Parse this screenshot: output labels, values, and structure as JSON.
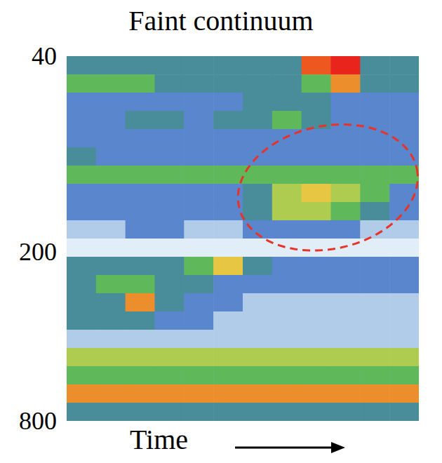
{
  "chart_data": {
    "type": "heatmap",
    "title": "Faint continuum",
    "xlabel": "Time",
    "log": "y",
    "tick_labels": "y",
    "ylim": [
      40,
      800
    ],
    "yticks": [
      40,
      200,
      800
    ],
    "y_edges": [
      40,
      46.5,
      54.0,
      62.7,
      72.8,
      84.6,
      98.3,
      114.1,
      132.6,
      154.0,
      178.9,
      207.8,
      241.4,
      280.4,
      325.7,
      378.3,
      439.5,
      510.5,
      593.0,
      688.8,
      800
    ],
    "cells": [
      [
        4,
        4,
        4,
        4,
        4,
        4,
        4,
        4,
        9,
        10,
        4,
        4
      ],
      [
        5,
        5,
        5,
        4,
        4,
        4,
        4,
        4,
        5,
        8,
        4,
        4
      ],
      [
        3,
        3,
        3,
        3,
        3,
        3,
        4,
        4,
        4,
        3,
        3,
        3
      ],
      [
        3,
        3,
        4,
        4,
        3,
        4,
        4,
        5,
        4,
        3,
        3,
        3
      ],
      [
        3,
        3,
        3,
        3,
        3,
        3,
        3,
        3,
        3,
        3,
        3,
        3
      ],
      [
        4,
        3,
        3,
        3,
        3,
        3,
        3,
        3,
        3,
        3,
        3,
        3
      ],
      [
        5,
        5,
        5,
        5,
        5,
        5,
        5,
        5,
        5,
        5,
        5,
        5
      ],
      [
        3,
        3,
        3,
        3,
        3,
        3,
        4,
        6,
        7,
        6,
        5,
        3
      ],
      [
        3,
        3,
        3,
        3,
        3,
        3,
        4,
        6,
        6,
        5,
        4,
        3
      ],
      [
        2,
        2,
        3,
        3,
        2,
        2,
        3,
        3,
        3,
        3,
        2,
        2
      ],
      [
        1,
        1,
        1,
        1,
        1,
        1,
        1,
        1,
        1,
        1,
        1,
        1
      ],
      [
        4,
        4,
        4,
        4,
        5,
        7,
        4,
        3,
        3,
        3,
        3,
        3
      ],
      [
        4,
        5,
        5,
        4,
        4,
        3,
        3,
        3,
        3,
        3,
        3,
        3
      ],
      [
        4,
        4,
        8,
        4,
        3,
        3,
        2,
        2,
        2,
        2,
        2,
        2
      ],
      [
        4,
        4,
        4,
        3,
        3,
        2,
        2,
        2,
        2,
        2,
        2,
        2
      ],
      [
        2,
        2,
        2,
        2,
        2,
        2,
        2,
        2,
        2,
        2,
        2,
        2
      ],
      [
        6,
        6,
        6,
        6,
        6,
        6,
        6,
        6,
        6,
        6,
        6,
        6
      ],
      [
        5,
        5,
        5,
        5,
        5,
        5,
        5,
        5,
        5,
        5,
        5,
        5
      ],
      [
        8,
        8,
        8,
        8,
        8,
        8,
        8,
        8,
        8,
        8,
        8,
        8
      ],
      [
        4,
        4,
        4,
        4,
        4,
        4,
        4,
        4,
        4,
        4,
        4,
        4
      ]
    ],
    "colormap": [
      "#ffffff",
      "#cfe3f2",
      "#3b6fc4",
      "#5fb85a",
      "#e3d94a",
      "#f07b25",
      "#e8241c"
    ],
    "color_range": [
      0,
      10
    ],
    "highlight": {
      "x": [
        5.8,
        12
      ],
      "y": [
        71,
        195
      ],
      "color": "#e8332a",
      "line_style": "dashed"
    }
  }
}
